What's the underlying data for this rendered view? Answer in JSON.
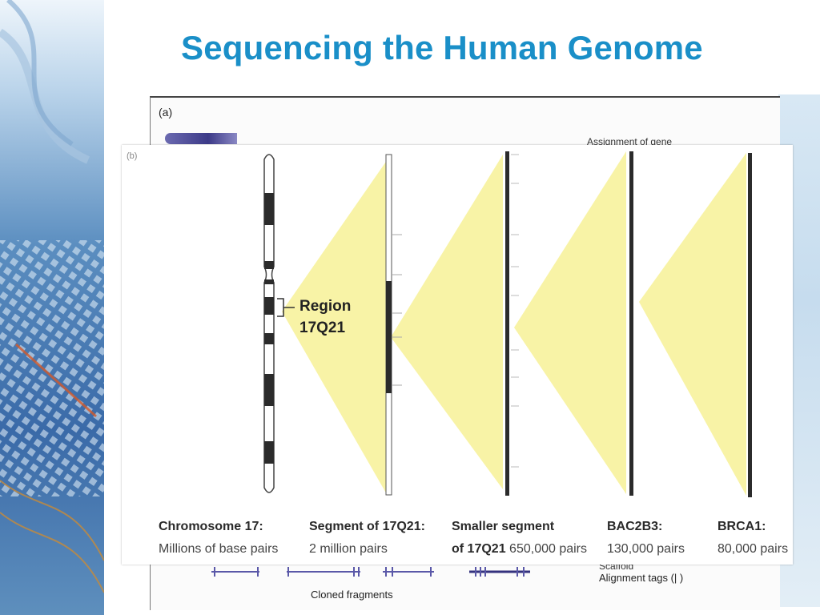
{
  "slide": {
    "title": "Sequencing the Human Genome"
  },
  "back_figure": {
    "panel_label": "(a)",
    "top_text": "Assignment of gene",
    "cloned_fragments_label": "Cloned fragments",
    "legend_line1": "Scaffold",
    "legend_line2": "Alignment tags (| )"
  },
  "front_figure": {
    "panel_label": "(b)",
    "region_label_line1": "Region",
    "region_label_line2": "17Q21",
    "captions": [
      {
        "title": "Chromosome 17:",
        "detail": "Millions of base pairs"
      },
      {
        "title": "Segment of 17Q21:",
        "detail": "2 million pairs"
      },
      {
        "title": "Smaller segment",
        "title2": "of 17Q21",
        "detail": "650,000 pairs"
      },
      {
        "title": "BAC2B3:",
        "detail": "130,000 pairs"
      },
      {
        "title": "BRCA1:",
        "detail": "80,000 pairs"
      }
    ]
  },
  "colors": {
    "title": "#1a8fc8",
    "highlight": "#f8f3a6",
    "chromosome_band": "#2b2b2b"
  }
}
